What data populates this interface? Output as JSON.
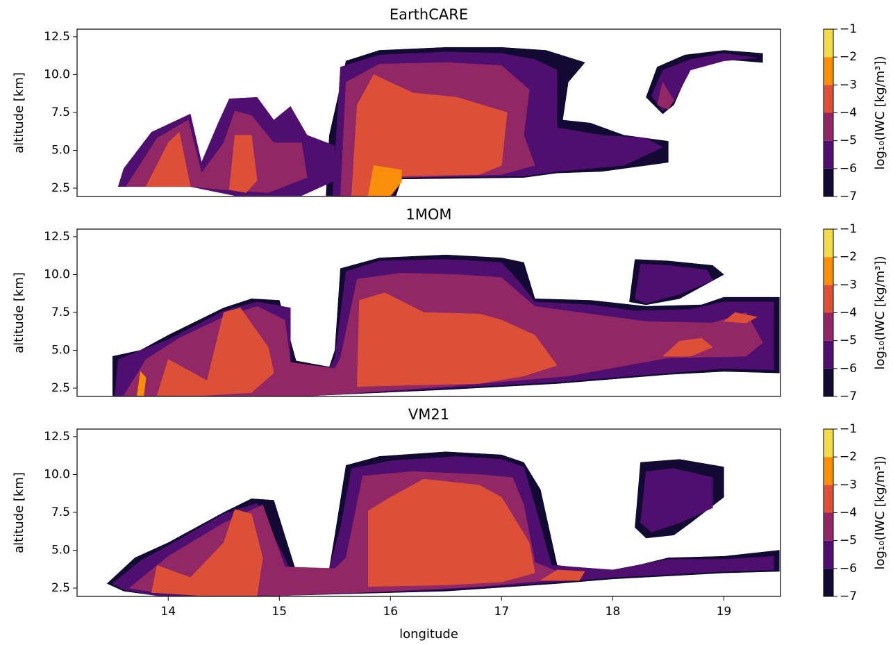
{
  "chart_data": [
    {
      "type": "contourf",
      "title": "EarthCARE",
      "ylabel": "altitude [km]",
      "xlim": [
        13.18,
        19.51
      ],
      "ylim": [
        1.95,
        13.0
      ],
      "yticks": [
        2.5,
        {
          "value": 5,
          "label": "5.0"
        },
        7.5,
        {
          "value": 10,
          "label": "10.0"
        },
        12.5
      ],
      "colorbar": {
        "label": "log₁₀(IWC [kg/m³])",
        "levels": [
          {
            "value": -7,
            "label": "−7"
          },
          {
            "value": -6,
            "label": "−6"
          },
          {
            "value": -5,
            "label": "−5"
          },
          {
            "value": -4,
            "label": "−4"
          },
          {
            "value": -3,
            "label": "−3"
          },
          {
            "value": -2,
            "label": "−2"
          },
          {
            "value": -1,
            "label": "−1"
          }
        ],
        "colors": [
          "#120a32",
          "#4f0f6f",
          "#912865",
          "#dc5038",
          "#f98e0a",
          "#f3dc4c"
        ]
      },
      "regions": [
        {
          "band": -7,
          "x": [
            15.42,
            15.45,
            15.6,
            15.9,
            16.5,
            17.0,
            17.4,
            17.75,
            17.6,
            17.55,
            17.8,
            18.1,
            18.5,
            18.5,
            17.9,
            17.5,
            17.2,
            16.1,
            16.05
          ],
          "y": [
            2.0,
            6.0,
            10.9,
            11.6,
            11.8,
            11.8,
            11.6,
            10.8,
            9.5,
            7.0,
            6.8,
            6.0,
            5.6,
            4.2,
            3.6,
            3.5,
            3.2,
            3.1,
            2.0
          ]
        },
        {
          "band": -6,
          "x": [
            15.48,
            15.55,
            15.9,
            16.5,
            17.0,
            17.3,
            17.5,
            17.5,
            17.9,
            18.3,
            18.45,
            18.1,
            17.5,
            17.2,
            16.1,
            16.02
          ],
          "y": [
            2.0,
            10.5,
            11.3,
            11.5,
            11.4,
            11.0,
            10.3,
            6.5,
            6.0,
            5.8,
            5.2,
            4.0,
            3.6,
            3.3,
            3.2,
            2.0
          ]
        },
        {
          "band": -5,
          "x": [
            15.55,
            15.6,
            15.9,
            16.5,
            17.0,
            17.25,
            17.2,
            17.3,
            17.0,
            16.1,
            16.0
          ],
          "y": [
            2.0,
            9.5,
            10.7,
            10.8,
            10.6,
            9.0,
            6.0,
            4.0,
            3.4,
            3.2,
            2.0
          ]
        },
        {
          "band": -4,
          "x": [
            15.65,
            15.7,
            15.85,
            16.2,
            16.6,
            17.05,
            17.0,
            16.8,
            16.1,
            15.98
          ],
          "y": [
            2.0,
            8.0,
            10.0,
            8.8,
            8.5,
            7.5,
            4.0,
            3.4,
            3.3,
            2.0
          ]
        },
        {
          "band": -3,
          "x": [
            15.8,
            15.85,
            16.1,
            16.1,
            16.0
          ],
          "y": [
            2.0,
            4.0,
            3.7,
            2.9,
            2.0
          ]
        },
        {
          "band": -6,
          "x": [
            13.55,
            13.6,
            13.85,
            14.2,
            14.3,
            14.45,
            14.55,
            14.8,
            14.95,
            15.1,
            15.25,
            15.5,
            15.5,
            15.2,
            14.6,
            14.2,
            13.6
          ],
          "y": [
            2.6,
            3.8,
            6.2,
            7.4,
            4.2,
            6.8,
            8.4,
            8.5,
            7.0,
            7.9,
            6.0,
            5.3,
            3.0,
            2.0,
            2.0,
            2.6,
            2.6
          ]
        },
        {
          "band": -5,
          "x": [
            13.62,
            13.9,
            14.18,
            14.3,
            14.5,
            14.6,
            14.75,
            14.95,
            15.2,
            15.25,
            14.9,
            14.5,
            14.2,
            13.65
          ],
          "y": [
            2.6,
            5.8,
            7.0,
            3.5,
            5.5,
            7.6,
            7.3,
            5.5,
            5.5,
            3.2,
            2.2,
            2.4,
            2.6,
            2.6
          ]
        },
        {
          "band": -4,
          "x": [
            13.8,
            14.0,
            14.1,
            14.2,
            14.0
          ],
          "y": [
            2.6,
            5.5,
            6.2,
            2.6,
            2.6
          ]
        },
        {
          "band": -4,
          "x": [
            14.55,
            14.6,
            14.75,
            14.8,
            14.7
          ],
          "y": [
            2.4,
            6.0,
            6.0,
            3.0,
            2.2
          ]
        },
        {
          "band": -7,
          "x": [
            18.3,
            18.4,
            18.65,
            19.0,
            19.35,
            19.35,
            19.0,
            18.7,
            18.55,
            18.45,
            18.3
          ],
          "y": [
            8.5,
            10.5,
            11.3,
            11.6,
            11.4,
            10.8,
            11.0,
            10.5,
            8.0,
            7.4,
            8.5
          ]
        },
        {
          "band": -6,
          "x": [
            18.35,
            18.45,
            18.7,
            19.0,
            19.3,
            19.0,
            18.7,
            18.55,
            18.45
          ],
          "y": [
            8.6,
            10.3,
            11.0,
            11.4,
            11.1,
            10.9,
            10.3,
            8.2,
            7.6
          ]
        },
        {
          "band": -5,
          "x": [
            18.4,
            18.45,
            18.55,
            18.5
          ],
          "y": [
            8.0,
            9.5,
            8.3,
            7.7
          ]
        }
      ]
    },
    {
      "type": "contourf",
      "title": "1MOM",
      "ylabel": "altitude [km]",
      "xlim": [
        13.18,
        19.51
      ],
      "ylim": [
        1.95,
        13.0
      ],
      "yticks": [
        2.5,
        {
          "value": 5,
          "label": "5.0"
        },
        7.5,
        {
          "value": 10,
          "label": "10.0"
        },
        12.5
      ],
      "colorbar": {
        "label": "log₁₀(IWC [kg/m³])",
        "levels": [
          {
            "value": -7,
            "label": "−7"
          },
          {
            "value": -6,
            "label": "−6"
          },
          {
            "value": -5,
            "label": "−5"
          },
          {
            "value": -4,
            "label": "−4"
          },
          {
            "value": -3,
            "label": "−3"
          },
          {
            "value": -2,
            "label": "−2"
          },
          {
            "value": -1,
            "label": "−1"
          }
        ],
        "colors": [
          "#120a32",
          "#4f0f6f",
          "#912865",
          "#dc5038",
          "#f98e0a",
          "#f3dc4c"
        ]
      },
      "regions": [
        {
          "band": -7,
          "x": [
            13.5,
            13.5,
            13.75,
            14.0,
            14.5,
            14.75,
            15.0,
            15.15,
            15.45,
            15.5,
            15.55,
            15.9,
            16.5,
            17.0,
            17.2,
            17.3,
            17.8,
            18.3,
            18.8,
            19.0,
            19.5,
            19.5,
            19.0,
            18.5,
            17.5,
            16.5,
            15.3
          ],
          "y": [
            2.0,
            4.6,
            5.0,
            6.0,
            7.8,
            8.4,
            8.3,
            4.3,
            3.9,
            5.0,
            10.4,
            11.1,
            11.3,
            11.1,
            10.8,
            8.4,
            8.3,
            7.9,
            8.0,
            8.5,
            8.5,
            3.5,
            3.6,
            3.4,
            2.8,
            2.4,
            2.0
          ]
        },
        {
          "band": -7,
          "x": [
            18.15,
            18.2,
            18.5,
            18.9,
            19.0,
            18.8,
            18.6,
            18.3
          ],
          "y": [
            8.2,
            11.0,
            10.9,
            10.6,
            10.0,
            9.2,
            8.4,
            8.0
          ]
        },
        {
          "band": -6,
          "x": [
            18.2,
            18.25,
            18.5,
            18.85,
            18.9,
            18.6,
            18.3
          ],
          "y": [
            8.4,
            10.7,
            10.6,
            10.3,
            9.6,
            8.7,
            8.1
          ]
        },
        {
          "band": -6,
          "x": [
            13.52,
            13.55,
            14.0,
            14.5,
            14.8,
            15.1,
            15.1,
            15.45,
            15.5,
            15.6,
            15.9,
            16.5,
            17.0,
            17.15,
            17.3,
            17.8,
            18.2,
            18.7,
            19.0,
            19.45,
            19.45,
            19.0,
            18.5,
            17.5,
            16.5,
            15.3
          ],
          "y": [
            2.0,
            4.4,
            5.7,
            7.6,
            8.2,
            7.8,
            4.2,
            3.8,
            4.5,
            10.2,
            10.9,
            11.0,
            10.8,
            9.6,
            8.2,
            8.0,
            7.6,
            7.7,
            8.2,
            8.2,
            3.7,
            3.8,
            3.5,
            2.9,
            2.5,
            2.0
          ]
        },
        {
          "band": -5,
          "x": [
            13.6,
            13.8,
            14.1,
            14.5,
            14.8,
            15.05,
            15.1,
            15.5,
            15.55,
            15.7,
            16.1,
            16.6,
            17.0,
            17.3,
            17.7,
            18.3,
            18.9,
            19.2,
            19.35,
            19.2,
            18.5,
            17.6,
            16.5,
            15.3
          ],
          "y": [
            2.0,
            4.4,
            5.8,
            7.2,
            7.9,
            7.0,
            4.2,
            3.8,
            4.5,
            9.7,
            10.1,
            10.0,
            9.8,
            7.9,
            7.5,
            6.9,
            6.8,
            7.5,
            5.5,
            4.6,
            4.5,
            3.3,
            2.6,
            2.0
          ]
        },
        {
          "band": -4,
          "x": [
            13.9,
            14.0,
            14.35,
            14.5,
            14.65,
            14.9,
            14.95,
            14.75,
            14.3
          ],
          "y": [
            2.0,
            4.4,
            3.0,
            7.5,
            7.8,
            5.2,
            3.5,
            2.2,
            2.0
          ]
        },
        {
          "band": -4,
          "x": [
            15.7,
            15.72,
            15.95,
            16.3,
            16.8,
            17.0,
            17.3,
            17.5,
            17.2,
            16.8,
            16.2
          ],
          "y": [
            2.6,
            8.3,
            8.8,
            7.5,
            7.4,
            7.0,
            6.0,
            4.0,
            3.3,
            2.8,
            2.7
          ]
        },
        {
          "band": -4,
          "x": [
            18.45,
            18.6,
            18.8,
            18.9,
            18.7,
            18.5
          ],
          "y": [
            4.6,
            5.6,
            5.8,
            5.2,
            4.6,
            4.6
          ]
        },
        {
          "band": -4,
          "x": [
            19.0,
            19.1,
            19.3,
            19.2
          ],
          "y": [
            6.9,
            7.5,
            7.2,
            6.8
          ]
        },
        {
          "band": -3,
          "x": [
            13.72,
            13.75,
            13.8,
            13.78
          ],
          "y": [
            2.0,
            3.6,
            3.2,
            2.0
          ]
        }
      ]
    },
    {
      "type": "contourf",
      "title": "VM21",
      "ylabel": "altitude [km]",
      "xlabel": "longitude",
      "xlim": [
        13.18,
        19.51
      ],
      "ylim": [
        1.95,
        13.0
      ],
      "xticks": [
        14,
        15,
        16,
        17,
        18,
        19
      ],
      "yticks": [
        2.5,
        {
          "value": 5,
          "label": "5.0"
        },
        7.5,
        {
          "value": 10,
          "label": "10.0"
        },
        12.5
      ],
      "colorbar": {
        "label": "log₁₀(IWC [kg/m³])",
        "levels": [
          {
            "value": -7,
            "label": "−7"
          },
          {
            "value": -6,
            "label": "−6"
          },
          {
            "value": -5,
            "label": "−5"
          },
          {
            "value": -4,
            "label": "−4"
          },
          {
            "value": -3,
            "label": "−3"
          },
          {
            "value": -2,
            "label": "−2"
          },
          {
            "value": -1,
            "label": "−1"
          }
        ],
        "colors": [
          "#120a32",
          "#4f0f6f",
          "#912865",
          "#dc5038",
          "#f98e0a",
          "#f3dc4c"
        ]
      },
      "regions": [
        {
          "band": -7,
          "x": [
            13.45,
            13.7,
            14.0,
            14.5,
            14.75,
            14.95,
            15.15,
            15.45,
            15.5,
            15.6,
            15.9,
            16.5,
            17.0,
            17.2,
            17.35,
            17.5,
            18.0,
            18.5,
            19.0,
            19.5,
            19.5,
            19.0,
            18.5,
            18.0,
            17.5,
            16.5,
            15.0,
            13.9,
            13.6
          ],
          "y": [
            2.8,
            4.5,
            5.5,
            7.5,
            8.4,
            8.3,
            3.6,
            3.8,
            6.0,
            10.6,
            11.2,
            11.5,
            11.3,
            10.8,
            9.0,
            4.0,
            3.6,
            4.5,
            4.6,
            5.0,
            3.6,
            3.5,
            3.3,
            3.1,
            2.8,
            2.3,
            2.0,
            2.0,
            2.3
          ]
        },
        {
          "band": -7,
          "x": [
            18.2,
            18.25,
            18.6,
            19.0,
            19.0,
            18.7,
            18.55,
            18.3
          ],
          "y": [
            6.5,
            10.8,
            11.0,
            10.5,
            8.5,
            6.8,
            6.0,
            5.8
          ]
        },
        {
          "band": -6,
          "x": [
            18.25,
            18.3,
            18.55,
            18.9,
            18.9,
            18.6,
            18.35
          ],
          "y": [
            6.8,
            10.2,
            10.4,
            9.8,
            7.8,
            6.8,
            6.2
          ]
        },
        {
          "band": -6,
          "x": [
            13.5,
            13.75,
            14.0,
            14.5,
            14.8,
            15.1,
            15.45,
            15.55,
            15.65,
            16.0,
            16.6,
            17.0,
            17.2,
            17.3,
            17.45,
            18.0,
            18.5,
            19.0,
            19.45,
            19.45,
            19.0,
            18.5,
            18.0,
            17.5,
            16.5,
            15.0,
            13.9,
            13.6
          ],
          "y": [
            2.8,
            4.3,
            5.3,
            7.4,
            8.1,
            3.7,
            3.8,
            6.5,
            10.4,
            10.9,
            11.2,
            11.0,
            10.5,
            8.0,
            4.0,
            3.7,
            4.4,
            4.4,
            4.6,
            3.7,
            3.6,
            3.4,
            3.2,
            2.9,
            2.4,
            2.0,
            2.0,
            2.4
          ]
        },
        {
          "band": -5,
          "x": [
            13.65,
            14.0,
            14.5,
            14.85,
            15.05,
            15.5,
            15.6,
            15.75,
            16.2,
            16.8,
            17.1,
            17.2,
            17.3,
            17.6,
            17.4,
            16.8,
            16.0,
            15.0,
            13.9
          ],
          "y": [
            2.5,
            4.6,
            6.8,
            8.0,
            3.9,
            3.8,
            4.5,
            9.9,
            10.2,
            10.0,
            9.8,
            8.0,
            4.2,
            3.3,
            3.0,
            2.6,
            2.3,
            2.0,
            2.2
          ]
        },
        {
          "band": -4,
          "x": [
            13.85,
            13.9,
            14.2,
            14.5,
            14.6,
            14.75,
            14.85,
            14.8,
            14.3
          ],
          "y": [
            2.2,
            4.0,
            3.2,
            5.5,
            7.7,
            7.4,
            4.5,
            2.0,
            2.0
          ]
        },
        {
          "band": -4,
          "x": [
            15.8,
            15.8,
            16.0,
            16.3,
            16.8,
            17.0,
            17.25,
            17.3,
            17.0,
            16.5
          ],
          "y": [
            2.6,
            7.6,
            8.5,
            9.7,
            9.3,
            8.5,
            5.5,
            3.5,
            2.9,
            2.7
          ]
        },
        {
          "band": -4,
          "x": [
            17.35,
            17.5,
            17.75,
            17.7
          ],
          "y": [
            3.0,
            3.7,
            3.6,
            3.0
          ]
        }
      ]
    }
  ]
}
